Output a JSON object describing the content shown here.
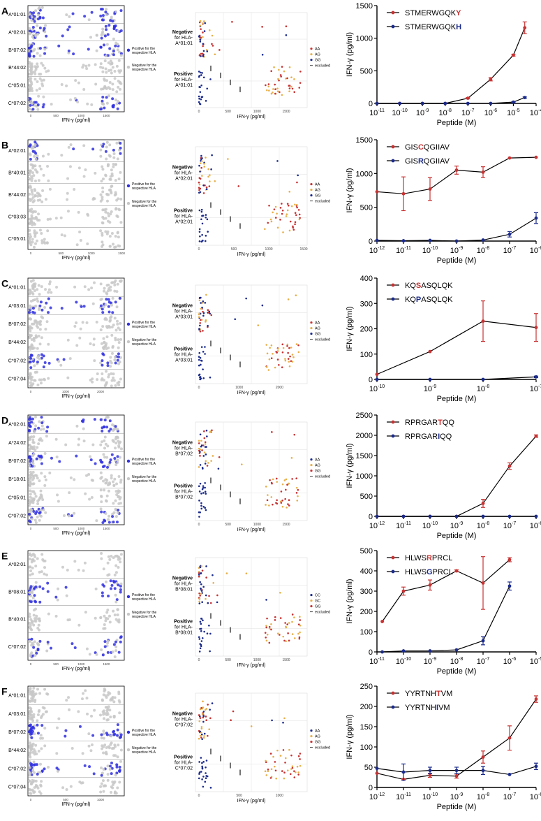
{
  "colors": {
    "grey": "#c8c8c8",
    "blue": "#3030e0",
    "navy": "#1a2a8c",
    "red": "#c83232",
    "orange": "#e8b04a",
    "dark": "#000000",
    "grid": "#e6e6e6"
  },
  "common": {
    "left_xlabel": "IFN-γ (pg/ml)",
    "mid_xlabel": "IFN-γ (pg/ml)",
    "legend_pos": "Positive for the respective HLA",
    "legend_neg": "Negative for the respective HLA",
    "excluded": "excluded",
    "negative": "Negative",
    "positive": "Positive",
    "for_hla": "for HLA-",
    "right_xlabel": "Peptide (M)",
    "right_ylabel": "IFN-γ (pg/ml)"
  },
  "panels": [
    {
      "letter": "A",
      "left": {
        "hlas": [
          "A*01:01",
          "A*02:01",
          "B*07:02",
          "B*44:02",
          "C*05:01",
          "C*07:02"
        ],
        "positive": [
          0,
          1,
          2,
          5
        ],
        "ticks": [
          "0",
          "500",
          "1000",
          "1500"
        ],
        "xmax": 1800
      },
      "middle": {
        "hla": "A*01:01",
        "genotypes": [
          "AA",
          "AG",
          "GG"
        ],
        "geno_colors": [
          "red",
          "orange",
          "navy"
        ],
        "ticks": [
          "0",
          "500",
          "1000",
          "1500"
        ],
        "xmax": 1800
      },
      "chart_data": {
        "type": "line",
        "series": [
          {
            "name_prefix": "STMERWGQK",
            "aa": "Y",
            "color": "red",
            "x": [
              -11,
              -10,
              -9,
              -8,
              -7,
              -6,
              -5,
              -4.5
            ],
            "y": [
              0,
              0,
              0,
              0,
              80,
              370,
              740,
              1160
            ],
            "err": [
              0,
              0,
              0,
              0,
              10,
              25,
              15,
              90
            ]
          },
          {
            "name_prefix": "STMERWGQK",
            "aa": "H",
            "color": "navy",
            "x": [
              -11,
              -10,
              -9,
              -8,
              -7,
              -6,
              -5,
              -4.5
            ],
            "y": [
              0,
              0,
              0,
              0,
              0,
              0,
              20,
              90
            ],
            "err": [
              0,
              0,
              0,
              0,
              0,
              0,
              5,
              10
            ]
          }
        ],
        "ylim": [
          0,
          1500
        ],
        "yticks": [
          0,
          500,
          1000,
          1500
        ],
        "xlim": [
          -11,
          -4
        ],
        "xticks": [
          -11,
          -10,
          -9,
          -8,
          -7,
          -6,
          -5,
          -4
        ],
        "xlabel": "Peptide (M)",
        "ylabel": "IFN-γ (pg/ml)"
      }
    },
    {
      "letter": "B",
      "left": {
        "hlas": [
          "A*02:01",
          "B*40:01",
          "B*44:02",
          "C*03:03",
          "C*05:01"
        ],
        "positive": [
          0
        ],
        "ticks": [
          "0",
          "500",
          "1000",
          "1500"
        ],
        "xmax": 1500
      },
      "middle": {
        "hla": "A*02:01",
        "genotypes": [
          "AA",
          "AG",
          "GG"
        ],
        "geno_colors": [
          "red",
          "orange",
          "navy"
        ],
        "ticks": [
          "0",
          "500",
          "1000",
          "1500"
        ],
        "xmax": 1500
      },
      "chart_data": {
        "type": "line",
        "series": [
          {
            "name_prefix": "GIS",
            "aa": "C",
            "name_suffix": "QGIIAV",
            "color": "red",
            "x": [
              -12,
              -11,
              -10,
              -9,
              -8,
              -7,
              -6
            ],
            "y": [
              730,
              700,
              770,
              1050,
              1020,
              1230,
              1240
            ],
            "err": [
              0,
              250,
              170,
              60,
              80,
              0,
              0
            ]
          },
          {
            "name_prefix": "GIS",
            "aa": "R",
            "name_suffix": "QGIIAV",
            "color": "navy",
            "x": [
              -12,
              -11,
              -10,
              -9,
              -8,
              -7,
              -6
            ],
            "y": [
              10,
              5,
              10,
              0,
              15,
              100,
              340
            ],
            "err": [
              0,
              0,
              0,
              0,
              0,
              40,
              80
            ]
          }
        ],
        "ylim": [
          0,
          1500
        ],
        "yticks": [
          0,
          500,
          1000,
          1500
        ],
        "xlim": [
          -12,
          -6
        ],
        "xticks": [
          -12,
          -11,
          -10,
          -9,
          -8,
          -7,
          -6
        ],
        "xlabel": "Peptide (M)",
        "ylabel": "IFN-γ (pg/ml)"
      }
    },
    {
      "letter": "C",
      "left": {
        "hlas": [
          "A*01:01",
          "A*03:01",
          "B*07:02",
          "B*44:02",
          "C*07:02",
          "C*07:04"
        ],
        "positive": [
          1,
          4
        ],
        "ticks": [
          "0",
          "1000",
          "2000"
        ],
        "xmax": 2600
      },
      "middle": {
        "hla": "A*03:01",
        "genotypes": [
          "AA",
          "AG",
          "GG"
        ],
        "geno_colors": [
          "red",
          "orange",
          "navy"
        ],
        "ticks": [
          "0",
          "1000",
          "2000"
        ],
        "xmax": 2600
      },
      "chart_data": {
        "type": "line",
        "series": [
          {
            "name_prefix": "KQ",
            "aa": "S",
            "name_suffix": "ASQLQK",
            "color": "red",
            "x": [
              -10,
              -9,
              -8,
              -7
            ],
            "y": [
              20,
              110,
              230,
              205
            ],
            "err": [
              0,
              0,
              80,
              55
            ]
          },
          {
            "name_prefix": "KQ",
            "aa": "P",
            "name_suffix": "ASQLQK",
            "color": "navy",
            "x": [
              -10,
              -9,
              -8,
              -7
            ],
            "y": [
              0,
              0,
              0,
              10
            ],
            "err": [
              0,
              0,
              0,
              3
            ]
          }
        ],
        "ylim": [
          0,
          400
        ],
        "yticks": [
          0,
          100,
          200,
          300,
          400
        ],
        "xlim": [
          -10,
          -7
        ],
        "xticks": [
          -10,
          -9,
          -8,
          -7
        ],
        "xlabel": "Peptide (M)",
        "ylabel": "IFN-γ (pg/ml)"
      }
    },
    {
      "letter": "D",
      "left": {
        "hlas": [
          "A*02:01",
          "A*24:02",
          "B*07:02",
          "B*18:01",
          "C*05:01",
          "C*07:02"
        ],
        "positive": [
          0,
          2,
          5
        ],
        "ticks": [
          "0",
          "500",
          "1000",
          "1500"
        ],
        "xmax": 1800
      },
      "middle": {
        "hla": "B*07:02",
        "genotypes": [
          "AA",
          "AG",
          "GG"
        ],
        "geno_colors": [
          "navy",
          "orange",
          "red"
        ],
        "ticks": [
          "0",
          "500",
          "1000",
          "1500"
        ],
        "xmax": 1800
      },
      "chart_data": {
        "type": "line",
        "series": [
          {
            "name_prefix": "RPRGAR",
            "aa": "T",
            "name_suffix": "QQ",
            "color": "red",
            "x": [
              -12,
              -11,
              -10,
              -9,
              -8,
              -7,
              -6
            ],
            "y": [
              0,
              0,
              0,
              0,
              320,
              1240,
              1980
            ],
            "err": [
              0,
              0,
              0,
              0,
              100,
              80,
              30
            ]
          },
          {
            "name_prefix": "RPRGAR",
            "aa": "I",
            "name_suffix": "QQ",
            "color": "navy",
            "x": [
              -12,
              -11,
              -10,
              -9,
              -8,
              -7,
              -6
            ],
            "y": [
              0,
              0,
              0,
              0,
              0,
              0,
              0
            ],
            "err": [
              0,
              0,
              0,
              0,
              0,
              0,
              0
            ]
          }
        ],
        "ylim": [
          0,
          2500
        ],
        "yticks": [
          0,
          500,
          1000,
          1500,
          2000,
          2500
        ],
        "xlim": [
          -12,
          -6
        ],
        "xticks": [
          -12,
          -11,
          -10,
          -9,
          -8,
          -7,
          -6
        ],
        "xlabel": "Peptide (M)",
        "ylabel": "IFN-γ (pg/ml)"
      }
    },
    {
      "letter": "E",
      "left": {
        "hlas": [
          "A*02:01",
          "B*08:01",
          "B*40:01",
          "C*07:02"
        ],
        "positive": [
          1,
          3
        ],
        "ticks": [
          "0",
          "500",
          "1000",
          "1500"
        ],
        "xmax": 1800
      },
      "middle": {
        "hla": "B*08:01",
        "genotypes": [
          "CC",
          "GC",
          "GG"
        ],
        "geno_colors": [
          "navy",
          "orange",
          "red"
        ],
        "ticks": [
          "0",
          "500",
          "1000",
          "1500"
        ],
        "xmax": 1800
      },
      "chart_data": {
        "type": "line",
        "series": [
          {
            "name_prefix": "HLWS",
            "aa": "R",
            "name_suffix": "PRCL",
            "color": "red",
            "x": [
              -10.8,
              -10,
              -9,
              -8,
              -7,
              -6
            ],
            "y": [
              150,
              300,
              330,
              400,
              340,
              455
            ],
            "err": [
              0,
              20,
              25,
              5,
              130,
              10
            ]
          },
          {
            "name_prefix": "HLWS",
            "aa": "G",
            "name_suffix": "PRCL",
            "color": "navy",
            "x": [
              -10.8,
              -10,
              -9,
              -8,
              -7,
              -6
            ],
            "y": [
              0,
              5,
              5,
              10,
              55,
              325
            ],
            "err": [
              0,
              0,
              0,
              0,
              20,
              20
            ]
          }
        ],
        "ylim": [
          0,
          500
        ],
        "yticks": [
          0,
          100,
          200,
          300,
          400,
          500
        ],
        "xlim": [
          -11,
          -5
        ],
        "xticks": [
          -11,
          -10,
          -9,
          -8,
          -7,
          -6,
          -5
        ],
        "xlabel": "Peptide (M)",
        "ylabel": "IFN-γ (pg/ml)"
      }
    },
    {
      "letter": "F",
      "left": {
        "hlas": [
          "A*01:01",
          "A*03:01",
          "B*07:02",
          "B*44:02",
          "C*07:02",
          "C*07:04"
        ],
        "positive": [
          2,
          4
        ],
        "ticks": [
          "0",
          "500",
          "1000"
        ],
        "xmax": 1300
      },
      "middle": {
        "hla": "C*07:02",
        "genotypes": [
          "AA",
          "AG",
          "GG"
        ],
        "geno_colors": [
          "navy",
          "orange",
          "red"
        ],
        "ticks": [
          "0",
          "500",
          "1000"
        ],
        "xmax": 1300
      },
      "chart_data": {
        "type": "line",
        "series": [
          {
            "name_prefix": "YYRTNH",
            "aa": "T",
            "name_suffix": "VM",
            "color": "red",
            "x": [
              -12,
              -11,
              -10,
              -9,
              -8,
              -7,
              -6
            ],
            "y": [
              35,
              20,
              30,
              28,
              75,
              122,
              218
            ],
            "err": [
              0,
              0,
              5,
              5,
              15,
              30,
              8
            ]
          },
          {
            "name_prefix": "YYRTNH",
            "aa": "I",
            "name_suffix": "VM",
            "color": "navy",
            "x": [
              -12,
              -11,
              -10,
              -9,
              -8,
              -7,
              -6
            ],
            "y": [
              47,
              38,
              42,
              42,
              42,
              32,
              52
            ],
            "err": [
              0,
              20,
              8,
              8,
              10,
              0,
              8
            ]
          }
        ],
        "ylim": [
          0,
          250
        ],
        "yticks": [
          0,
          50,
          100,
          150,
          200,
          250
        ],
        "xlim": [
          -12,
          -6
        ],
        "xticks": [
          -12,
          -11,
          -10,
          -9,
          -8,
          -7,
          -6
        ],
        "xlabel": "Peptide (M)",
        "ylabel": "IFN-γ (pg/ml)"
      }
    }
  ]
}
